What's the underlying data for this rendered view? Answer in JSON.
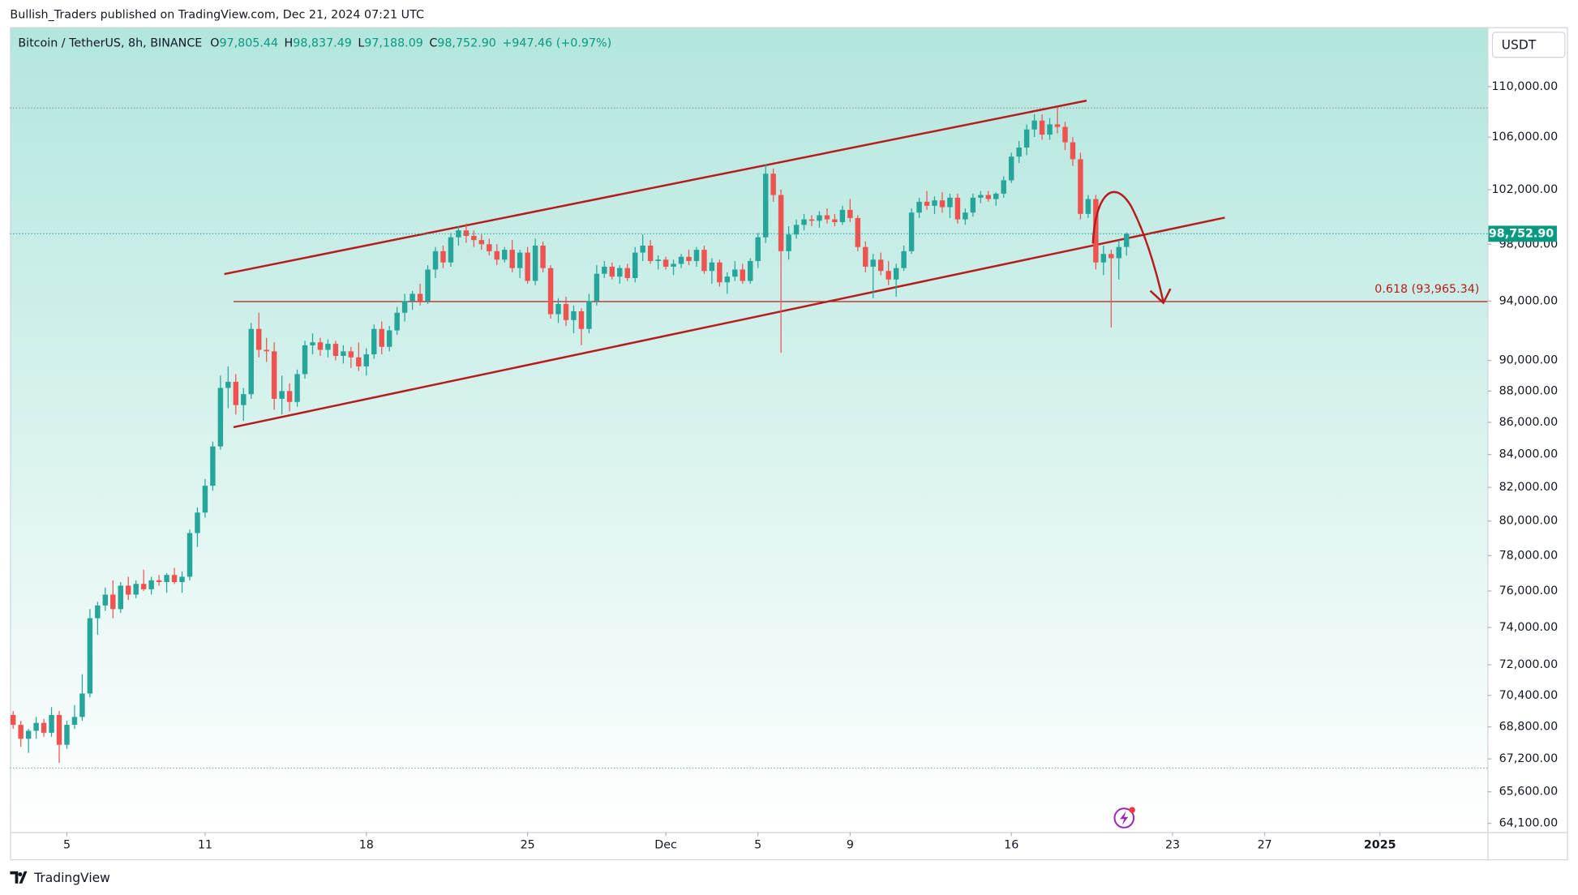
{
  "published": "Bullish_Traders published on TradingView.com, Dec 21, 2024 07:21 UTC",
  "brand": "TradingView",
  "currency_button": "USDT",
  "header": {
    "symbol": "Bitcoin / TetherUS, 8h, BINANCE",
    "open_label": "O",
    "open": "97,805.44",
    "high_label": "H",
    "high": "98,837.49",
    "low_label": "L",
    "low": "97,188.09",
    "close_label": "C",
    "close": "98,752.90",
    "change": "+947.46 (+0.97%)"
  },
  "chart_data": {
    "type": "candlestick",
    "log_scale": true,
    "up_color": "#26a69a",
    "down_color": "#ef5350",
    "drawing_color": "#b71c1c",
    "ylim": [
      63690,
      114900
    ],
    "yticks": [
      {
        "value": 110000,
        "label": "110,000.00"
      },
      {
        "value": 106000,
        "label": "106,000.00"
      },
      {
        "value": 102000,
        "label": "102,000.00"
      },
      {
        "value": 98000,
        "label": "98,000.00"
      },
      {
        "value": 94000,
        "label": "94,000.00"
      },
      {
        "value": 90000,
        "label": "90,000.00"
      },
      {
        "value": 88000,
        "label": "88,000.00"
      },
      {
        "value": 86000,
        "label": "86,000.00"
      },
      {
        "value": 84000,
        "label": "84,000.00"
      },
      {
        "value": 82000,
        "label": "82,000.00"
      },
      {
        "value": 80000,
        "label": "80,000.00"
      },
      {
        "value": 78000,
        "label": "78,000.00"
      },
      {
        "value": 76000,
        "label": "76,000.00"
      },
      {
        "value": 74000,
        "label": "74,000.00"
      },
      {
        "value": 72000,
        "label": "72,000.00"
      },
      {
        "value": 70400,
        "label": "70,400.00"
      },
      {
        "value": 68800,
        "label": "68,800.00"
      },
      {
        "value": 67200,
        "label": "67,200.00"
      },
      {
        "value": 65600,
        "label": "65,600.00"
      },
      {
        "value": 64100,
        "label": "64,100.00"
      }
    ],
    "xlim": [
      -0.4,
      192
    ],
    "xticks": [
      {
        "value": 7,
        "label": "5"
      },
      {
        "value": 25,
        "label": "11"
      },
      {
        "value": 46,
        "label": "18"
      },
      {
        "value": 67,
        "label": "25"
      },
      {
        "value": 85,
        "label": "Dec"
      },
      {
        "value": 97,
        "label": "5"
      },
      {
        "value": 109,
        "label": "9"
      },
      {
        "value": 130,
        "label": "16"
      },
      {
        "value": 151,
        "label": "23"
      },
      {
        "value": 163,
        "label": "27"
      },
      {
        "value": 178,
        "label": "2025"
      }
    ],
    "last_price_label": "98,752.90",
    "dotted_levels": [
      108300,
      66750
    ],
    "fib_level": {
      "value": 93965.34,
      "label": "0.618 (93,965.34)",
      "start": 28.7
    },
    "trendlines": [
      {
        "from": [
          27.5,
          95880
        ],
        "to": [
          139.8,
          108880
        ]
      },
      {
        "from": [
          28.7,
          85700
        ],
        "to": [
          157.8,
          99930
        ]
      }
    ],
    "ohlc": [
      [
        69400,
        69600,
        68700,
        68900
      ],
      [
        68900,
        69100,
        67800,
        68200
      ],
      [
        68200,
        68700,
        67500,
        68600
      ],
      [
        68600,
        69300,
        68200,
        69000
      ],
      [
        69000,
        69200,
        68300,
        68500
      ],
      [
        68500,
        69800,
        68300,
        69400
      ],
      [
        69400,
        69600,
        67000,
        67900
      ],
      [
        67900,
        69100,
        67700,
        68900
      ],
      [
        68900,
        69900,
        68700,
        69300
      ],
      [
        69300,
        71500,
        69100,
        70500
      ],
      [
        70500,
        75000,
        70300,
        74500
      ],
      [
        74500,
        75400,
        73600,
        75200
      ],
      [
        75200,
        76200,
        74900,
        75800
      ],
      [
        75800,
        76600,
        74500,
        75000
      ],
      [
        75000,
        76500,
        74800,
        76300
      ],
      [
        76300,
        76800,
        75500,
        75800
      ],
      [
        75800,
        76600,
        75600,
        76400
      ],
      [
        76400,
        77200,
        76000,
        76100
      ],
      [
        76100,
        76800,
        75800,
        76600
      ],
      [
        76600,
        76900,
        76300,
        76500
      ],
      [
        76500,
        77000,
        75900,
        76900
      ],
      [
        76900,
        77300,
        76400,
        76500
      ],
      [
        76500,
        77100,
        75900,
        76800
      ],
      [
        76800,
        79500,
        76600,
        79300
      ],
      [
        79300,
        80800,
        78500,
        80500
      ],
      [
        80500,
        82500,
        80200,
        82100
      ],
      [
        82100,
        84800,
        81800,
        84500
      ],
      [
        84500,
        89000,
        84300,
        88200
      ],
      [
        88200,
        89600,
        86900,
        88600
      ],
      [
        88600,
        89100,
        86500,
        87100
      ],
      [
        87100,
        88200,
        86100,
        87800
      ],
      [
        87800,
        92500,
        87500,
        92100
      ],
      [
        92100,
        93200,
        90200,
        90700
      ],
      [
        90700,
        91500,
        89900,
        90600
      ],
      [
        90600,
        91200,
        86800,
        87500
      ],
      [
        87500,
        89000,
        86500,
        88000
      ],
      [
        88000,
        88500,
        86700,
        87300
      ],
      [
        87300,
        89400,
        87000,
        89100
      ],
      [
        89100,
        91300,
        88800,
        91000
      ],
      [
        91000,
        91800,
        90400,
        91200
      ],
      [
        91200,
        91500,
        90300,
        90700
      ],
      [
        90700,
        91400,
        90200,
        91100
      ],
      [
        91100,
        91300,
        90000,
        90300
      ],
      [
        90300,
        91000,
        89800,
        90600
      ],
      [
        90600,
        90900,
        89500,
        90200
      ],
      [
        90200,
        91200,
        89300,
        89600
      ],
      [
        89600,
        90800,
        89000,
        90400
      ],
      [
        90400,
        92400,
        90100,
        92100
      ],
      [
        92100,
        92600,
        90400,
        90900
      ],
      [
        90900,
        92300,
        90600,
        92000
      ],
      [
        92000,
        93600,
        91700,
        93200
      ],
      [
        93200,
        94500,
        92600,
        94000
      ],
      [
        94000,
        94700,
        93400,
        94500
      ],
      [
        94500,
        95200,
        93700,
        94000
      ],
      [
        94000,
        96500,
        93800,
        96200
      ],
      [
        96200,
        97800,
        95600,
        97500
      ],
      [
        97500,
        97900,
        96300,
        96700
      ],
      [
        96700,
        98800,
        96400,
        98500
      ],
      [
        98500,
        99300,
        97900,
        99000
      ],
      [
        99000,
        99500,
        98100,
        98600
      ],
      [
        98600,
        99000,
        97800,
        98300
      ],
      [
        98300,
        98700,
        97600,
        98000
      ],
      [
        98000,
        98400,
        97200,
        97500
      ],
      [
        97500,
        98000,
        96500,
        96900
      ],
      [
        96900,
        97800,
        96700,
        97600
      ],
      [
        97600,
        98300,
        96000,
        96300
      ],
      [
        96300,
        97600,
        95600,
        97400
      ],
      [
        97400,
        97800,
        95200,
        95400
      ],
      [
        95400,
        98400,
        95100,
        97900
      ],
      [
        97900,
        98200,
        96000,
        96300
      ],
      [
        96300,
        96500,
        92800,
        93100
      ],
      [
        93100,
        94200,
        92500,
        93800
      ],
      [
        93800,
        94300,
        92300,
        92700
      ],
      [
        92700,
        93700,
        91800,
        93300
      ],
      [
        93300,
        93500,
        91000,
        92100
      ],
      [
        92100,
        94500,
        91800,
        94000
      ],
      [
        94000,
        96500,
        93700,
        95900
      ],
      [
        95900,
        96800,
        95600,
        96400
      ],
      [
        96400,
        96700,
        95500,
        95700
      ],
      [
        95700,
        96500,
        95200,
        96300
      ],
      [
        96300,
        96600,
        95400,
        95600
      ],
      [
        95600,
        97800,
        95300,
        97400
      ],
      [
        97400,
        98700,
        96800,
        97900
      ],
      [
        97900,
        98300,
        96600,
        96800
      ],
      [
        96800,
        97200,
        96200,
        96900
      ],
      [
        96900,
        97100,
        96200,
        96400
      ],
      [
        96400,
        96900,
        95800,
        96600
      ],
      [
        96600,
        97300,
        96300,
        97100
      ],
      [
        97100,
        97600,
        96500,
        96800
      ],
      [
        96800,
        97800,
        96400,
        97600
      ],
      [
        97600,
        97900,
        95900,
        96100
      ],
      [
        96100,
        97000,
        95200,
        96700
      ],
      [
        96700,
        96900,
        95000,
        95300
      ],
      [
        95300,
        96000,
        94500,
        95700
      ],
      [
        95700,
        96800,
        95400,
        96200
      ],
      [
        96200,
        96600,
        95200,
        95400
      ],
      [
        95400,
        97000,
        95200,
        96800
      ],
      [
        96800,
        98800,
        96300,
        98500
      ],
      [
        98500,
        103900,
        98100,
        103200
      ],
      [
        103200,
        103600,
        101100,
        101600
      ],
      [
        101600,
        102000,
        90500,
        97500
      ],
      [
        97500,
        99300,
        96900,
        98700
      ],
      [
        98700,
        99800,
        98400,
        99400
      ],
      [
        99400,
        100200,
        99000,
        99800
      ],
      [
        99800,
        100100,
        99300,
        99700
      ],
      [
        99700,
        100400,
        99200,
        100100
      ],
      [
        100100,
        100600,
        99500,
        99800
      ],
      [
        99800,
        100200,
        99300,
        99600
      ],
      [
        99600,
        100800,
        99400,
        100500
      ],
      [
        100500,
        101300,
        99600,
        99900
      ],
      [
        99900,
        100100,
        97500,
        97800
      ],
      [
        97800,
        98200,
        96000,
        96400
      ],
      [
        96400,
        97300,
        94200,
        96900
      ],
      [
        96900,
        97400,
        95800,
        96100
      ],
      [
        96100,
        96800,
        95100,
        95500
      ],
      [
        95500,
        96600,
        94300,
        96300
      ],
      [
        96300,
        97900,
        96100,
        97500
      ],
      [
        97500,
        100600,
        97300,
        100300
      ],
      [
        100300,
        101400,
        99900,
        101100
      ],
      [
        101100,
        101900,
        100500,
        100800
      ],
      [
        100800,
        101500,
        100200,
        101200
      ],
      [
        101200,
        101800,
        100300,
        100700
      ],
      [
        100700,
        101700,
        99900,
        101400
      ],
      [
        101400,
        101700,
        99500,
        99800
      ],
      [
        99800,
        100600,
        99400,
        100300
      ],
      [
        100300,
        101700,
        100000,
        101400
      ],
      [
        101400,
        101900,
        101000,
        101600
      ],
      [
        101600,
        101900,
        101100,
        101300
      ],
      [
        101300,
        101800,
        100800,
        101700
      ],
      [
        101700,
        103000,
        101400,
        102700
      ],
      [
        102700,
        104800,
        102500,
        104500
      ],
      [
        104500,
        105700,
        104000,
        105200
      ],
      [
        105200,
        107000,
        104600,
        106600
      ],
      [
        106600,
        107800,
        106000,
        107300
      ],
      [
        107300,
        107800,
        105800,
        106200
      ],
      [
        106200,
        107500,
        105800,
        107000
      ],
      [
        107000,
        108300,
        106300,
        106800
      ],
      [
        106800,
        107200,
        105000,
        105600
      ],
      [
        105600,
        106000,
        103800,
        104300
      ],
      [
        104300,
        104800,
        99800,
        100200
      ],
      [
        100200,
        101600,
        99900,
        101300
      ],
      [
        101300,
        101600,
        96200,
        96700
      ],
      [
        96700,
        97900,
        95800,
        97300
      ],
      [
        97300,
        97600,
        92200,
        97000
      ],
      [
        97000,
        98300,
        95500,
        97805.44
      ],
      [
        97805.44,
        98837.49,
        97188.09,
        98752.9
      ]
    ]
  }
}
